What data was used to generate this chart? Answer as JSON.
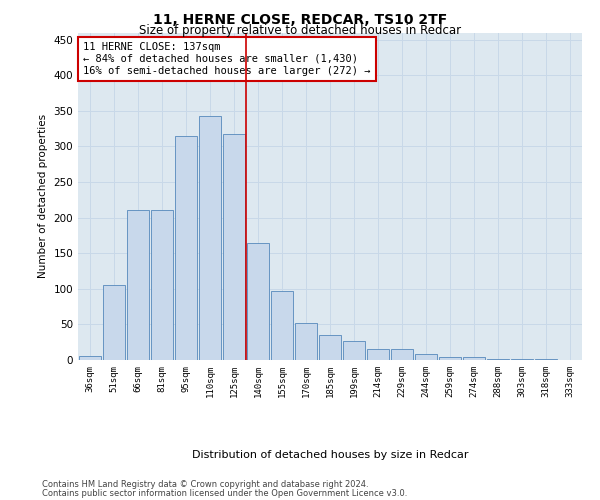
{
  "title": "11, HERNE CLOSE, REDCAR, TS10 2TF",
  "subtitle": "Size of property relative to detached houses in Redcar",
  "xlabel": "Distribution of detached houses by size in Redcar",
  "ylabel": "Number of detached properties",
  "categories": [
    "36sqm",
    "51sqm",
    "66sqm",
    "81sqm",
    "95sqm",
    "110sqm",
    "125sqm",
    "140sqm",
    "155sqm",
    "170sqm",
    "185sqm",
    "199sqm",
    "214sqm",
    "229sqm",
    "244sqm",
    "259sqm",
    "274sqm",
    "288sqm",
    "303sqm",
    "318sqm",
    "333sqm"
  ],
  "values": [
    5,
    105,
    210,
    210,
    315,
    343,
    318,
    165,
    97,
    52,
    35,
    27,
    16,
    16,
    9,
    4,
    4,
    2,
    1,
    1,
    0
  ],
  "bar_color": "#c8d8eb",
  "bar_edge_color": "#5588bb",
  "vline_x_index": 7,
  "vline_color": "#cc0000",
  "annotation_line1": "11 HERNE CLOSE: 137sqm",
  "annotation_line2": "← 84% of detached houses are smaller (1,430)",
  "annotation_line3": "16% of semi-detached houses are larger (272) →",
  "annotation_box_color": "#cc0000",
  "ylim": [
    0,
    460
  ],
  "yticks": [
    0,
    50,
    100,
    150,
    200,
    250,
    300,
    350,
    400,
    450
  ],
  "grid_color": "#c8d8e8",
  "bg_color": "#dde8f0",
  "footer_line1": "Contains HM Land Registry data © Crown copyright and database right 2024.",
  "footer_line2": "Contains public sector information licensed under the Open Government Licence v3.0."
}
